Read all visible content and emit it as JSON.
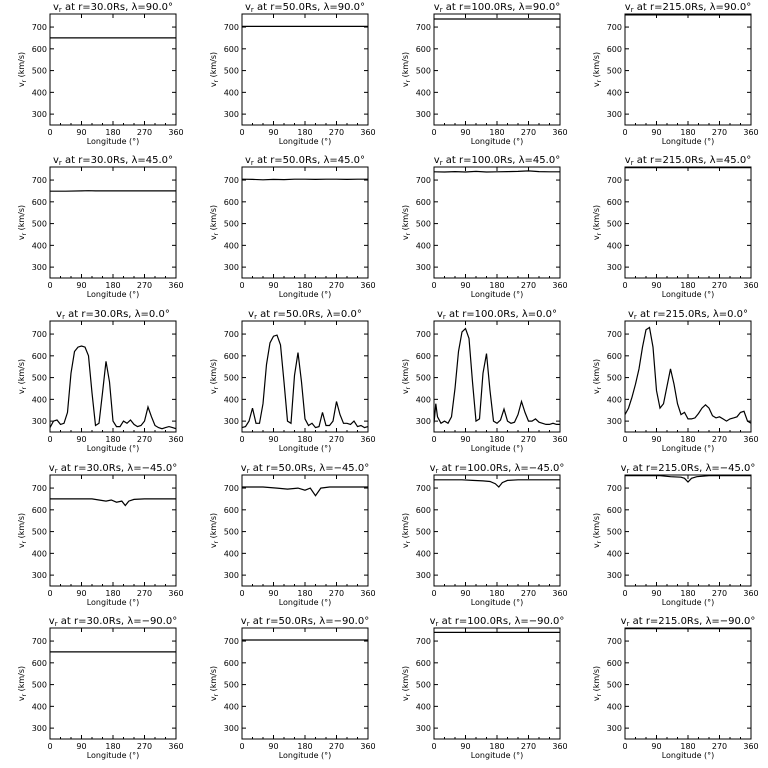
{
  "figure": {
    "layout": {
      "rows": 5,
      "cols": 4
    },
    "shared": {
      "type": "line",
      "xlabel": "Longitude (°)",
      "ylabel": "vr (km/s)",
      "xlim": [
        0,
        360
      ],
      "ylim": [
        250,
        760
      ],
      "xticks": [
        0,
        90,
        180,
        270,
        360
      ],
      "yticks": [
        300,
        400,
        500,
        600,
        700
      ],
      "line_color": "#000000"
    }
  },
  "chart_data": [
    {
      "type": "line",
      "title": "vr at r=30.0Rs, λ=90.0°",
      "r": "30.0Rs",
      "lat": "90.0°",
      "x": [
        0,
        360
      ],
      "y": [
        650,
        650
      ]
    },
    {
      "type": "line",
      "title": "vr at r=50.0Rs, λ=90.0°",
      "r": "50.0Rs",
      "lat": "90.0°",
      "x": [
        0,
        360
      ],
      "y": [
        703,
        703
      ]
    },
    {
      "type": "line",
      "title": "vr at r=100.0Rs, λ=90.0°",
      "r": "100.0Rs",
      "lat": "90.0°",
      "x": [
        0,
        360
      ],
      "y": [
        737,
        737
      ]
    },
    {
      "type": "line",
      "title": "vr at r=215.0Rs, λ=90.0°",
      "r": "215.0Rs",
      "lat": "90.0°",
      "x": [
        0,
        360
      ],
      "y": [
        756,
        756
      ]
    },
    {
      "type": "line",
      "title": "vr at r=30.0Rs, λ=45.0°",
      "r": "30.0Rs",
      "lat": "45.0°",
      "x": [
        0,
        45,
        90,
        110,
        130,
        180,
        270,
        360
      ],
      "y": [
        649,
        649,
        650,
        651,
        650,
        650,
        650,
        650
      ]
    },
    {
      "type": "line",
      "title": "vr at r=50.0Rs, λ=45.0°",
      "r": "50.0Rs",
      "lat": "45.0°",
      "x": [
        0,
        30,
        60,
        90,
        120,
        150,
        180,
        210,
        240,
        270,
        300,
        330,
        360
      ],
      "y": [
        704,
        703,
        701,
        703,
        702,
        704,
        704,
        703,
        704,
        704,
        703,
        704,
        704
      ]
    },
    {
      "type": "line",
      "title": "vr at r=100.0Rs, λ=45.0°",
      "r": "100.0Rs",
      "lat": "45.0°",
      "x": [
        0,
        30,
        60,
        90,
        120,
        150,
        180,
        210,
        240,
        270,
        300,
        330,
        360
      ],
      "y": [
        738,
        737,
        739,
        737,
        740,
        737,
        738,
        739,
        740,
        742,
        739,
        738,
        738
      ]
    },
    {
      "type": "line",
      "title": "vr at r=215.0Rs, λ=45.0°",
      "r": "215.0Rs",
      "lat": "45.0°",
      "x": [
        0,
        360
      ],
      "y": [
        757,
        757
      ]
    },
    {
      "type": "line",
      "title": "vr at r=30.0Rs, λ=0.0°",
      "r": "30.0Rs",
      "lat": "0.0°",
      "x": [
        0,
        10,
        20,
        30,
        40,
        50,
        60,
        70,
        80,
        90,
        100,
        110,
        120,
        130,
        140,
        150,
        160,
        170,
        180,
        190,
        200,
        210,
        220,
        230,
        240,
        250,
        260,
        270,
        280,
        290,
        300,
        310,
        320,
        330,
        340,
        350,
        360
      ],
      "y": [
        270,
        300,
        305,
        285,
        290,
        340,
        520,
        620,
        640,
        645,
        640,
        600,
        430,
        280,
        290,
        430,
        575,
        480,
        300,
        275,
        275,
        300,
        290,
        305,
        285,
        275,
        280,
        300,
        365,
        320,
        280,
        270,
        265,
        270,
        275,
        270,
        265
      ]
    },
    {
      "type": "line",
      "title": "vr at r=50.0Rs, λ=0.0°",
      "r": "50.0Rs",
      "lat": "0.0°",
      "x": [
        0,
        10,
        20,
        30,
        40,
        50,
        60,
        70,
        80,
        90,
        100,
        110,
        120,
        130,
        140,
        150,
        160,
        170,
        180,
        190,
        200,
        210,
        220,
        230,
        240,
        250,
        260,
        270,
        280,
        290,
        300,
        310,
        320,
        330,
        340,
        350,
        360
      ],
      "y": [
        270,
        275,
        300,
        360,
        290,
        290,
        380,
        560,
        660,
        690,
        695,
        650,
        480,
        300,
        290,
        510,
        615,
        480,
        310,
        280,
        290,
        270,
        275,
        340,
        280,
        280,
        300,
        390,
        330,
        290,
        290,
        285,
        300,
        275,
        280,
        270,
        275
      ]
    },
    {
      "type": "line",
      "title": "vr at r=100.0Rs, λ=0.0°",
      "r": "100.0Rs",
      "lat": "0.0°",
      "x": [
        0,
        5,
        10,
        20,
        30,
        40,
        50,
        60,
        70,
        80,
        90,
        100,
        110,
        120,
        130,
        140,
        150,
        160,
        170,
        180,
        190,
        200,
        210,
        220,
        230,
        240,
        250,
        260,
        270,
        280,
        290,
        300,
        310,
        320,
        330,
        340,
        350,
        360
      ],
      "y": [
        290,
        380,
        320,
        290,
        300,
        290,
        320,
        450,
        620,
        710,
        725,
        680,
        480,
        300,
        310,
        520,
        610,
        440,
        300,
        290,
        305,
        355,
        300,
        290,
        295,
        330,
        390,
        340,
        300,
        300,
        310,
        295,
        290,
        285,
        285,
        290,
        285,
        285
      ]
    },
    {
      "type": "line",
      "title": "vr at r=215.0Rs, λ=0.0°",
      "r": "215.0Rs",
      "lat": "0.0°",
      "x": [
        0,
        10,
        20,
        30,
        40,
        50,
        60,
        70,
        80,
        90,
        100,
        110,
        120,
        130,
        140,
        150,
        160,
        170,
        180,
        190,
        200,
        210,
        220,
        230,
        240,
        250,
        260,
        270,
        280,
        290,
        300,
        310,
        320,
        330,
        340,
        350,
        360
      ],
      "y": [
        330,
        360,
        410,
        470,
        540,
        640,
        720,
        730,
        640,
        440,
        360,
        380,
        460,
        540,
        470,
        380,
        330,
        340,
        310,
        310,
        315,
        335,
        360,
        375,
        360,
        325,
        315,
        320,
        310,
        300,
        310,
        315,
        320,
        340,
        345,
        300,
        290
      ]
    },
    {
      "type": "line",
      "title": "vr at r=30.0Rs, λ=-45.0°",
      "r": "30.0Rs",
      "lat": "−45.0°",
      "x": [
        0,
        120,
        140,
        160,
        175,
        190,
        205,
        215,
        225,
        240,
        270,
        360
      ],
      "y": [
        650,
        650,
        645,
        640,
        645,
        635,
        640,
        620,
        640,
        648,
        650,
        650
      ]
    },
    {
      "type": "line",
      "title": "vr at r=50.0Rs, λ=-45.0°",
      "r": "50.0Rs",
      "lat": "−45.0°",
      "x": [
        0,
        60,
        100,
        130,
        160,
        180,
        195,
        210,
        225,
        250,
        270,
        360
      ],
      "y": [
        705,
        705,
        700,
        695,
        700,
        690,
        700,
        665,
        700,
        705,
        705,
        705
      ]
    },
    {
      "type": "line",
      "title": "vr at r=100.0Rs, λ=-45.0°",
      "r": "100.0Rs",
      "lat": "−45.0°",
      "x": [
        0,
        80,
        110,
        140,
        160,
        175,
        185,
        195,
        210,
        240,
        270,
        360
      ],
      "y": [
        738,
        738,
        735,
        733,
        730,
        720,
        705,
        725,
        735,
        738,
        738,
        738
      ]
    },
    {
      "type": "line",
      "title": "vr at r=215.0Rs, λ=-45.0°",
      "r": "215.0Rs",
      "lat": "−45.0°",
      "x": [
        0,
        100,
        130,
        160,
        170,
        180,
        190,
        205,
        240,
        270,
        360
      ],
      "y": [
        757,
        757,
        752,
        750,
        745,
        728,
        745,
        752,
        757,
        757,
        757
      ]
    },
    {
      "type": "line",
      "title": "vr at r=30.0Rs, λ=-90.0°",
      "r": "30.0Rs",
      "lat": "−90.0°",
      "x": [
        0,
        360
      ],
      "y": [
        650,
        650
      ]
    },
    {
      "type": "line",
      "title": "vr at r=50.0Rs, λ=-90.0°",
      "r": "50.0Rs",
      "lat": "−90.0°",
      "x": [
        0,
        360
      ],
      "y": [
        705,
        705
      ]
    },
    {
      "type": "line",
      "title": "vr at r=100.0Rs, λ=-90.0°",
      "r": "100.0Rs",
      "lat": "−90.0°",
      "x": [
        0,
        360
      ],
      "y": [
        740,
        740
      ]
    },
    {
      "type": "line",
      "title": "vr at r=215.0Rs, λ=-90.0°",
      "r": "215.0Rs",
      "lat": "−90.0°",
      "x": [
        0,
        360
      ],
      "y": [
        757,
        757
      ]
    }
  ]
}
